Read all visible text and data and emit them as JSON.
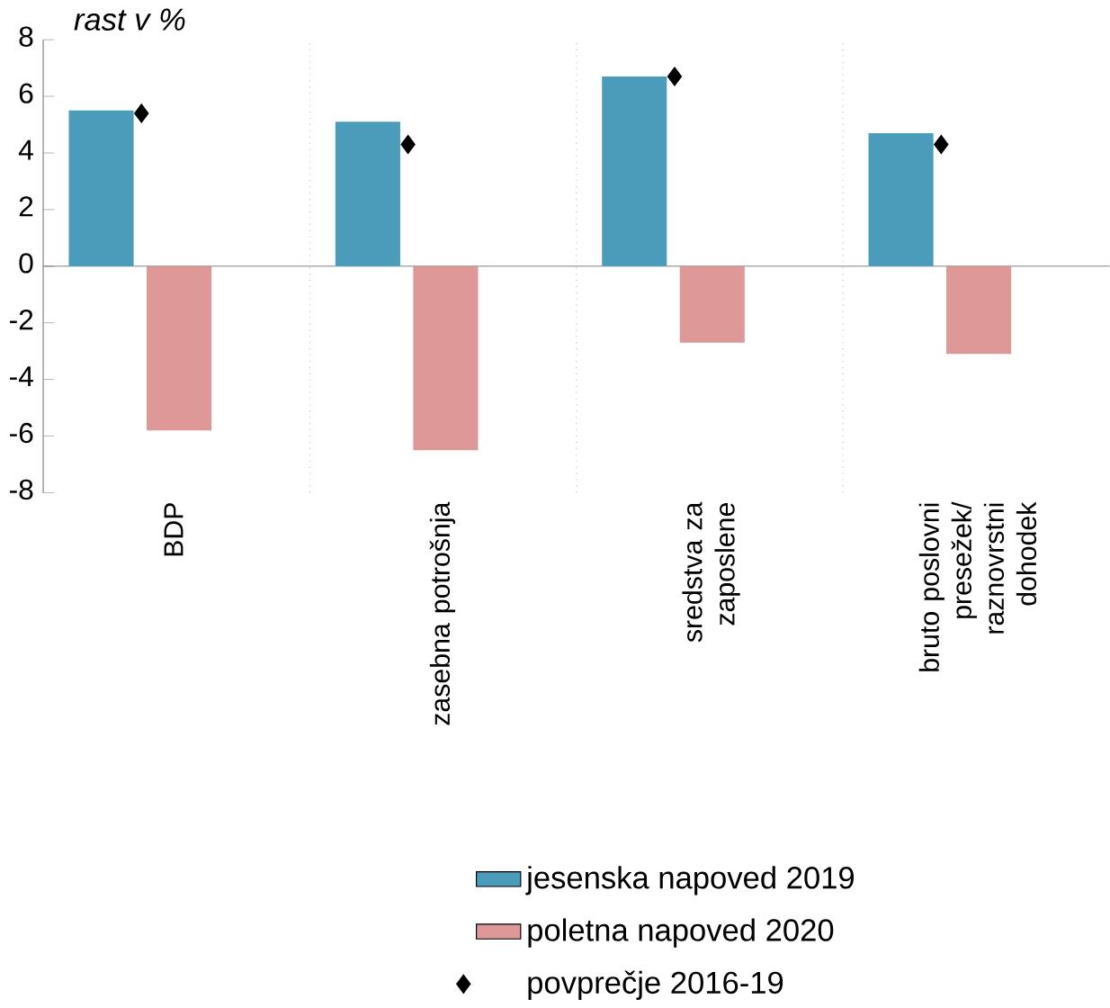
{
  "chart_data": {
    "type": "bar",
    "ylabel": "rast v %",
    "categories": [
      "BDP",
      "zasebna potrošnja",
      "sredstva za zaposlene",
      "bruto poslovni presežek/ raznovrstni dohodek"
    ],
    "series": [
      {
        "name": "jesenska napoved 2019",
        "color": "#4b9bbb",
        "values": [
          5.5,
          5.1,
          6.7,
          4.7
        ]
      },
      {
        "name": "poletna napoved 2020",
        "color": "#dd9897",
        "values": [
          -5.8,
          -6.5,
          -2.7,
          -3.1
        ]
      },
      {
        "name": "povprečje 2016-19",
        "type": "scatter",
        "marker": "diamond",
        "color": "#000000",
        "x": [
          "BDP",
          "zasebna potrošnja",
          "sredstva za zaposlene",
          "bruto poslovni presežek/ raznovrstni dohodek"
        ],
        "values": [
          5.4,
          4.3,
          6.7,
          4.3
        ]
      }
    ],
    "ylim": [
      -8,
      8
    ],
    "yticks": [
      -8,
      -6,
      -4,
      -2,
      0,
      2,
      4,
      6,
      8
    ],
    "grid": "x",
    "legend": "bottom"
  }
}
